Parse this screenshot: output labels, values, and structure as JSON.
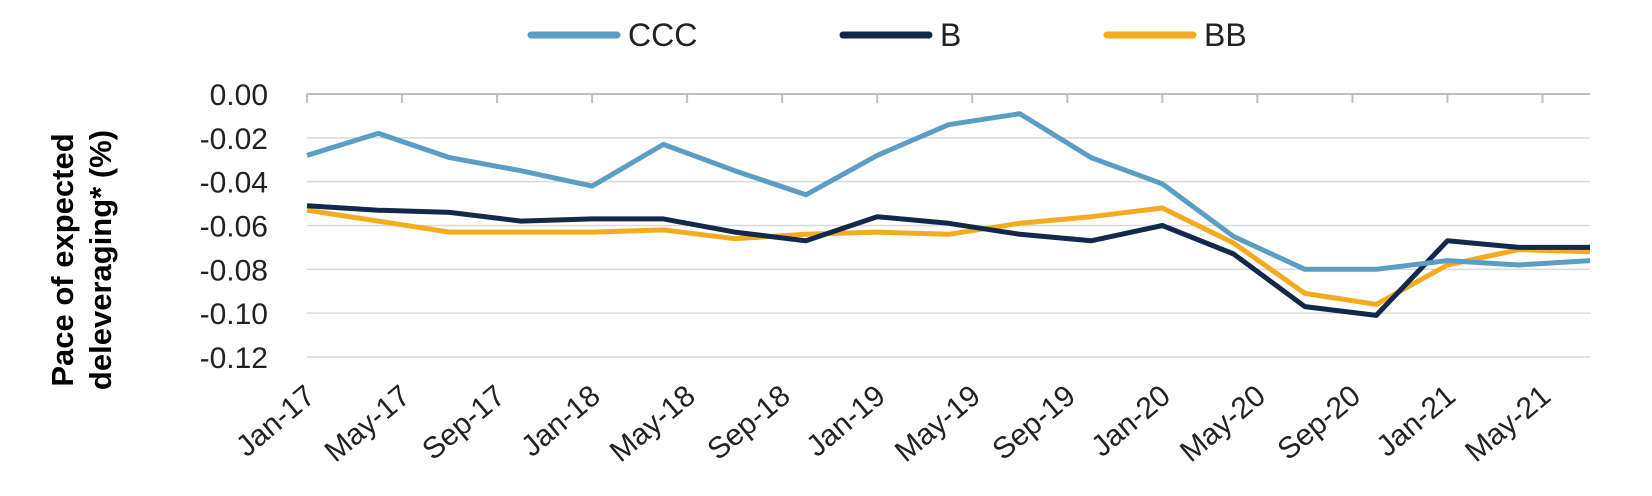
{
  "chart_data": {
    "type": "line",
    "title": "",
    "xlabel": "",
    "ylabel": "Pace of expected deleveraging* (%)",
    "ylim": [
      -0.12,
      0.0
    ],
    "yticks": [
      "0.00",
      "-0.02",
      "-0.04",
      "-0.06",
      "-0.08",
      "-0.10",
      "-0.12"
    ],
    "ytick_values": [
      0.0,
      -0.02,
      -0.04,
      -0.06,
      -0.08,
      -0.1,
      -0.12
    ],
    "x": [
      "Jan-17",
      "May-17",
      "Sep-17",
      "Jan-18",
      "May-18",
      "Sep-18",
      "Jan-19",
      "May-19",
      "Sep-19",
      "Jan-20",
      "May-20",
      "Sep-20",
      "Jan-21",
      "May-21"
    ],
    "grid": true,
    "legend_position": "top",
    "series": [
      {
        "name": "CCC",
        "color": "#5b9ec5",
        "points": [
          [
            "Jan-17",
            -0.028
          ],
          [
            "Apr-17",
            -0.018
          ],
          [
            "Jul-17",
            -0.029
          ],
          [
            "Oct-17",
            -0.035
          ],
          [
            "Jan-18",
            -0.042
          ],
          [
            "Apr-18",
            -0.023
          ],
          [
            "Jul-18",
            -0.035
          ],
          [
            "Oct-18",
            -0.046
          ],
          [
            "Jan-19",
            -0.028
          ],
          [
            "Apr-19",
            -0.014
          ],
          [
            "Jul-19",
            -0.009
          ],
          [
            "Oct-19",
            -0.029
          ],
          [
            "Jan-20",
            -0.041
          ],
          [
            "Apr-20",
            -0.065
          ],
          [
            "Jul-20",
            -0.08
          ],
          [
            "Oct-20",
            -0.08
          ],
          [
            "Jan-21",
            -0.076
          ],
          [
            "Apr-21",
            -0.078
          ],
          [
            "Jul-21",
            -0.076
          ]
        ]
      },
      {
        "name": "B",
        "color": "#13294b",
        "points": [
          [
            "Jan-17",
            -0.051
          ],
          [
            "Apr-17",
            -0.053
          ],
          [
            "Jul-17",
            -0.054
          ],
          [
            "Oct-17",
            -0.058
          ],
          [
            "Jan-18",
            -0.057
          ],
          [
            "Apr-18",
            -0.057
          ],
          [
            "Jul-18",
            -0.063
          ],
          [
            "Oct-18",
            -0.067
          ],
          [
            "Jan-19",
            -0.056
          ],
          [
            "Apr-19",
            -0.059
          ],
          [
            "Jul-19",
            -0.064
          ],
          [
            "Oct-19",
            -0.067
          ],
          [
            "Jan-20",
            -0.06
          ],
          [
            "Apr-20",
            -0.073
          ],
          [
            "Jul-20",
            -0.097
          ],
          [
            "Oct-20",
            -0.101
          ],
          [
            "Jan-21",
            -0.067
          ],
          [
            "Apr-21",
            -0.07
          ],
          [
            "Jul-21",
            -0.07
          ]
        ]
      },
      {
        "name": "BB",
        "color": "#f5ab20",
        "points": [
          [
            "Jan-17",
            -0.053
          ],
          [
            "Apr-17",
            -0.058
          ],
          [
            "Jul-17",
            -0.063
          ],
          [
            "Oct-17",
            -0.063
          ],
          [
            "Jan-18",
            -0.063
          ],
          [
            "Apr-18",
            -0.062
          ],
          [
            "Jul-18",
            -0.066
          ],
          [
            "Oct-18",
            -0.064
          ],
          [
            "Jan-19",
            -0.063
          ],
          [
            "Apr-19",
            -0.064
          ],
          [
            "Jul-19",
            -0.059
          ],
          [
            "Oct-19",
            -0.056
          ],
          [
            "Jan-20",
            -0.052
          ],
          [
            "Apr-20",
            -0.068
          ],
          [
            "Jul-20",
            -0.091
          ],
          [
            "Oct-20",
            -0.096
          ],
          [
            "Jan-21",
            -0.078
          ],
          [
            "Apr-21",
            -0.071
          ],
          [
            "Jul-21",
            -0.072
          ]
        ]
      }
    ]
  }
}
